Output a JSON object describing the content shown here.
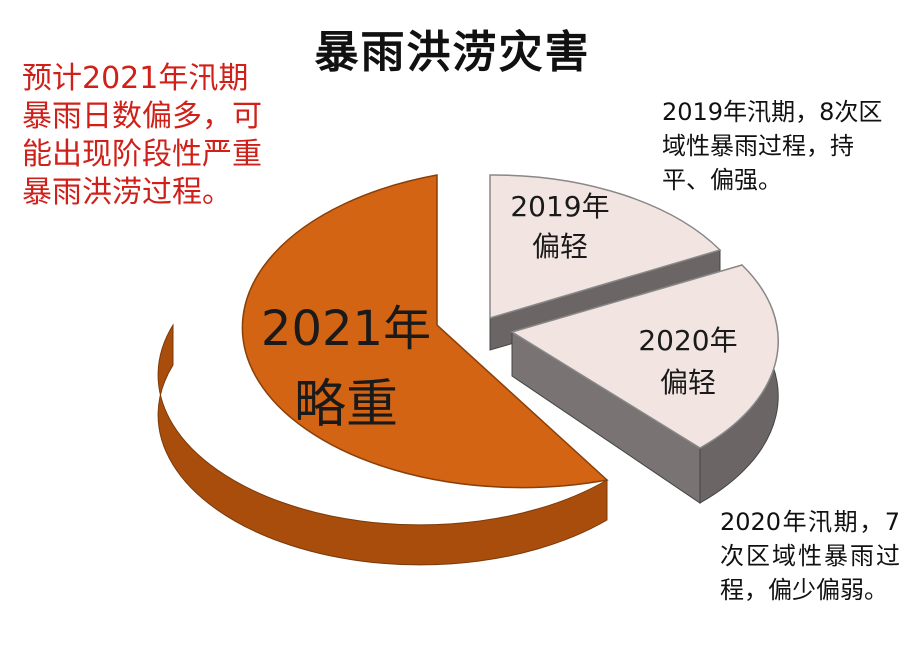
{
  "title": "暴雨洪涝灾害",
  "annotations": {
    "forecast_note": "预计2021年汛期暴雨日数偏多，可能出现阶段性严重暴雨洪涝过程。",
    "note_2019": "2019年汛期，8次区域性暴雨过程，持平、偏强。",
    "note_2020": "2020年汛期，7次区域性暴雨过程，偏少偏弱。"
  },
  "chart_data": {
    "type": "pie",
    "title": "暴雨洪涝灾害",
    "slices": [
      {
        "year": "2021年",
        "label": "略重",
        "share": 0.595,
        "color": "#d26414",
        "exploded": false
      },
      {
        "year": "2019年",
        "label": "偏轻",
        "share": 0.195,
        "color": "#f1e4e1",
        "exploded": true
      },
      {
        "year": "2020年",
        "label": "偏轻",
        "share": 0.21,
        "color": "#f1e4e1",
        "exploded": true
      }
    ],
    "side_colors": {
      "2021年": "#a84d0c",
      "2019年": "#6b6565",
      "2020年": "#6b6565"
    },
    "style": "3d-exploded"
  }
}
